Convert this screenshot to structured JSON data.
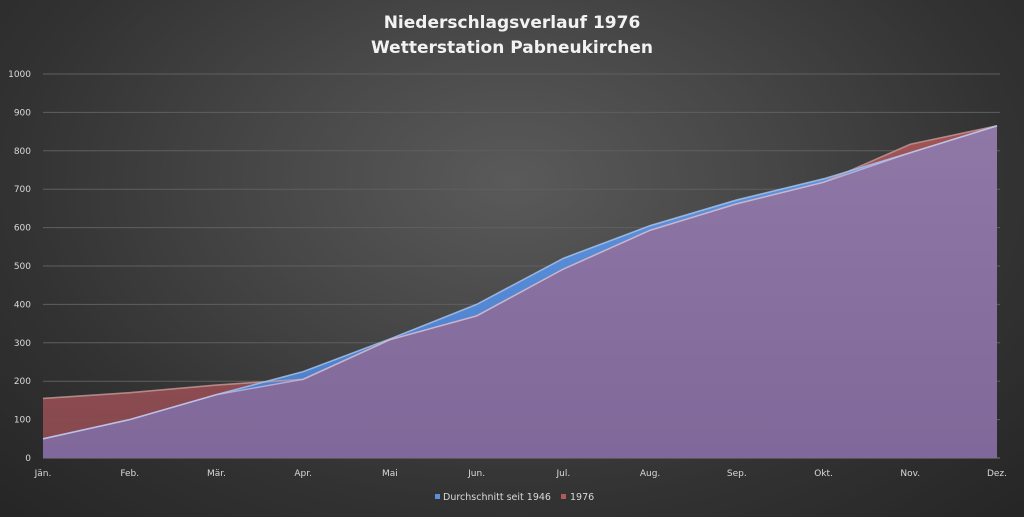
{
  "chart_data": {
    "type": "area",
    "title": "Niederschlagsverlauf 1976",
    "subtitle": "Wetterstation Pabneukirchen",
    "categories": [
      "Jän.",
      "Feb.",
      "Mär.",
      "Apr.",
      "Mai",
      "Jun.",
      "Jul.",
      "Aug.",
      "Sep.",
      "Okt.",
      "Nov.",
      "Dez."
    ],
    "series": [
      {
        "name": "Durchschnitt seit 1946",
        "color": "#5b8fd9",
        "values": [
          50,
          100,
          165,
          225,
          310,
          400,
          520,
          605,
          672,
          727,
          795,
          865
        ]
      },
      {
        "name": "1976",
        "color": "#b05a5a",
        "values": [
          155,
          170,
          190,
          205,
          308,
          370,
          492,
          593,
          662,
          718,
          817,
          865
        ]
      }
    ],
    "ylim": [
      0,
      1000
    ],
    "yticks": [
      "0",
      "100",
      "200",
      "300",
      "400",
      "500",
      "600",
      "700",
      "800",
      "900",
      "1000"
    ],
    "grid": true,
    "legend_position": "bottom"
  }
}
